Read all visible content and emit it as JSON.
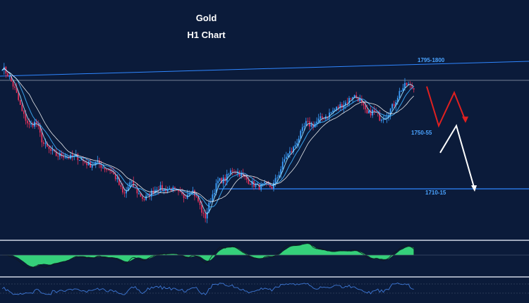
{
  "chart_data": {
    "type": "candlestick",
    "instrument": "Gold",
    "timeframe": "H1 Chart",
    "title": "Gold",
    "subtitle": "H1 Chart",
    "levels": [
      {
        "label": "1795-1800",
        "value": 1797.5
      },
      {
        "label": "1750-55",
        "value": 1752.5
      },
      {
        "label": "1710-15",
        "value": 1712.5
      }
    ],
    "ylim": [
      1675,
      1830
    ],
    "price_path": [
      1810,
      1802,
      1790,
      1772,
      1762,
      1765,
      1748,
      1742,
      1738,
      1738,
      1736,
      1737,
      1733,
      1730,
      1732,
      1728,
      1726,
      1718,
      1705,
      1716,
      1708,
      1702,
      1707,
      1712,
      1710,
      1711,
      1707,
      1704,
      1711,
      1701,
      1686,
      1704,
      1717,
      1718,
      1726,
      1724,
      1719,
      1715,
      1712,
      1714,
      1712,
      1723,
      1737,
      1742,
      1753,
      1764,
      1762,
      1767,
      1770,
      1774,
      1778,
      1781,
      1787,
      1783,
      1771,
      1774,
      1768,
      1771,
      1779,
      1791,
      1796,
      1792
    ],
    "projection_red": [
      1794,
      1762,
      1789,
      1766
    ],
    "projection_white": [
      1740,
      1762,
      1710
    ],
    "colors": {
      "background": "#0b1b3a",
      "up": "#3ba0ff",
      "down": "#e0305a",
      "ma_fast": "#9be2ff",
      "ma_mid": "#3fb0ff",
      "ma_slow": "#ffffff",
      "histogram": "#35d07a",
      "rsi": "#3e78d6",
      "level": "#2f86ff",
      "red_path": "#e02020",
      "white_path": "#ffffff"
    }
  }
}
